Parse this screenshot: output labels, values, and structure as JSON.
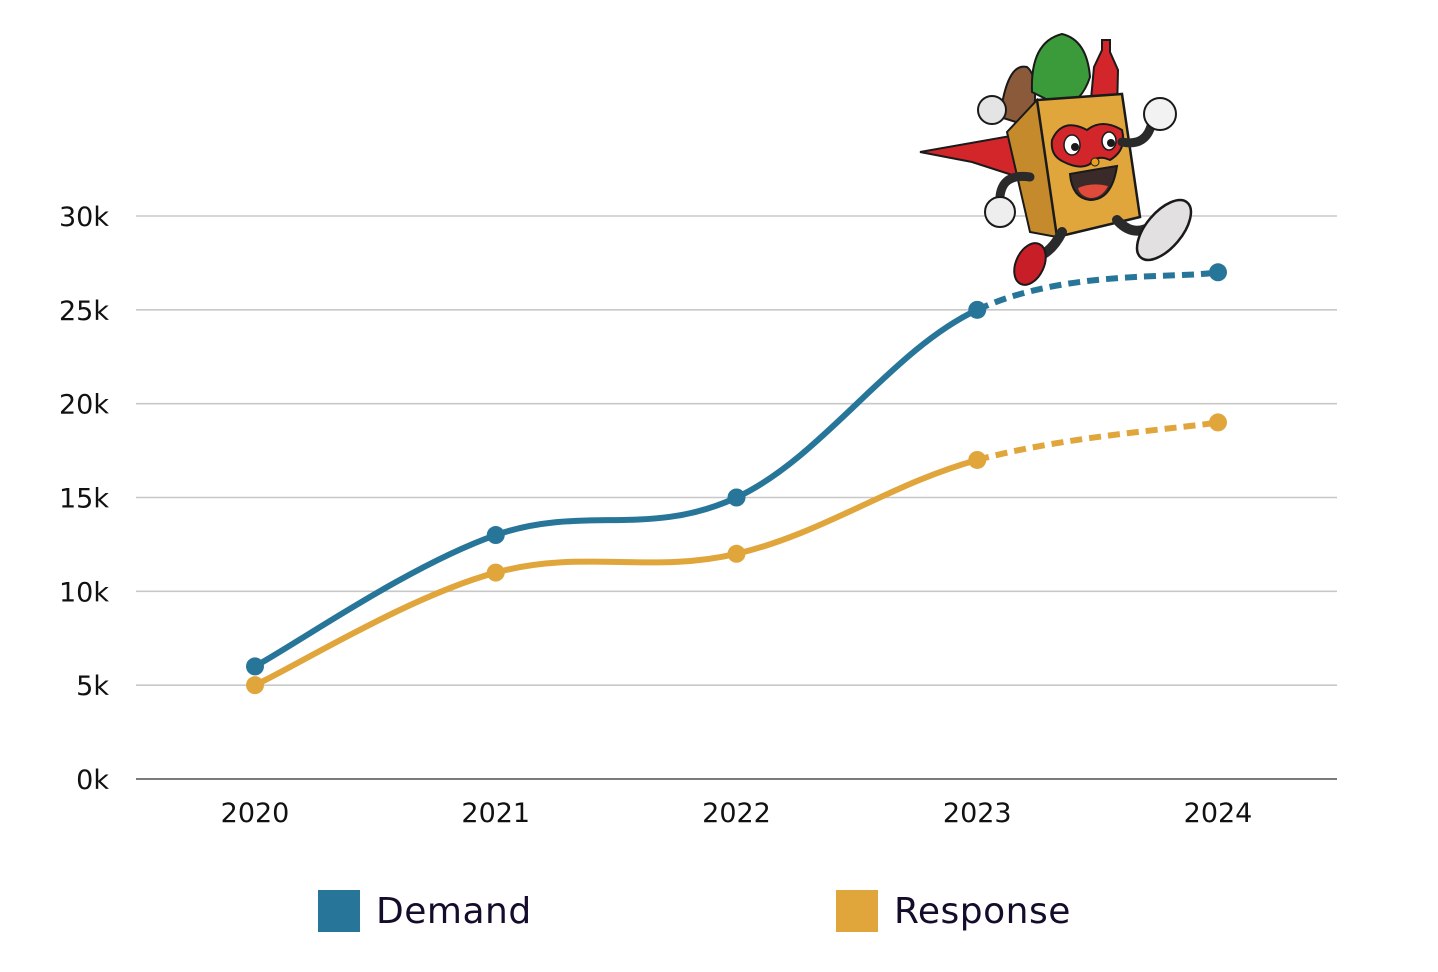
{
  "chart_data": {
    "type": "line",
    "title": "",
    "xlabel": "",
    "ylabel": "",
    "categories": [
      "2020",
      "2021",
      "2022",
      "2023",
      "2024"
    ],
    "ylim": [
      0,
      30000
    ],
    "yticks": [
      0,
      5000,
      10000,
      15000,
      20000,
      25000,
      30000
    ],
    "ytick_labels": [
      "0k",
      "5k",
      "10k",
      "15k",
      "20k",
      "25k",
      "30k"
    ],
    "grid": true,
    "legend_position": "bottom",
    "series": [
      {
        "name": "Demand",
        "color": "#27769A",
        "values": [
          6000,
          13000,
          15000,
          25000,
          27000
        ],
        "projected_from_index": 3,
        "projected_style": "dashed",
        "smooth": true,
        "markers": true
      },
      {
        "name": "Response",
        "color": "#E0A63C",
        "values": [
          5000,
          11000,
          12000,
          17000,
          19000
        ],
        "projected_from_index": 3,
        "projected_style": "dashed",
        "smooth": true,
        "markers": true
      }
    ],
    "annotations": [
      {
        "type": "illustration",
        "description": "cartoon grocery bag mascot in red superhero mask and cape, running",
        "near": "2023-2024 top"
      }
    ]
  },
  "legend": {
    "items": [
      {
        "label": "Demand",
        "color": "#27769A"
      },
      {
        "label": "Response",
        "color": "#E0A63C"
      }
    ]
  },
  "colors": {
    "grid": "#c8c8c8",
    "axis": "#7a7a7a",
    "text": "#111111",
    "legend_text": "#140c2a"
  }
}
